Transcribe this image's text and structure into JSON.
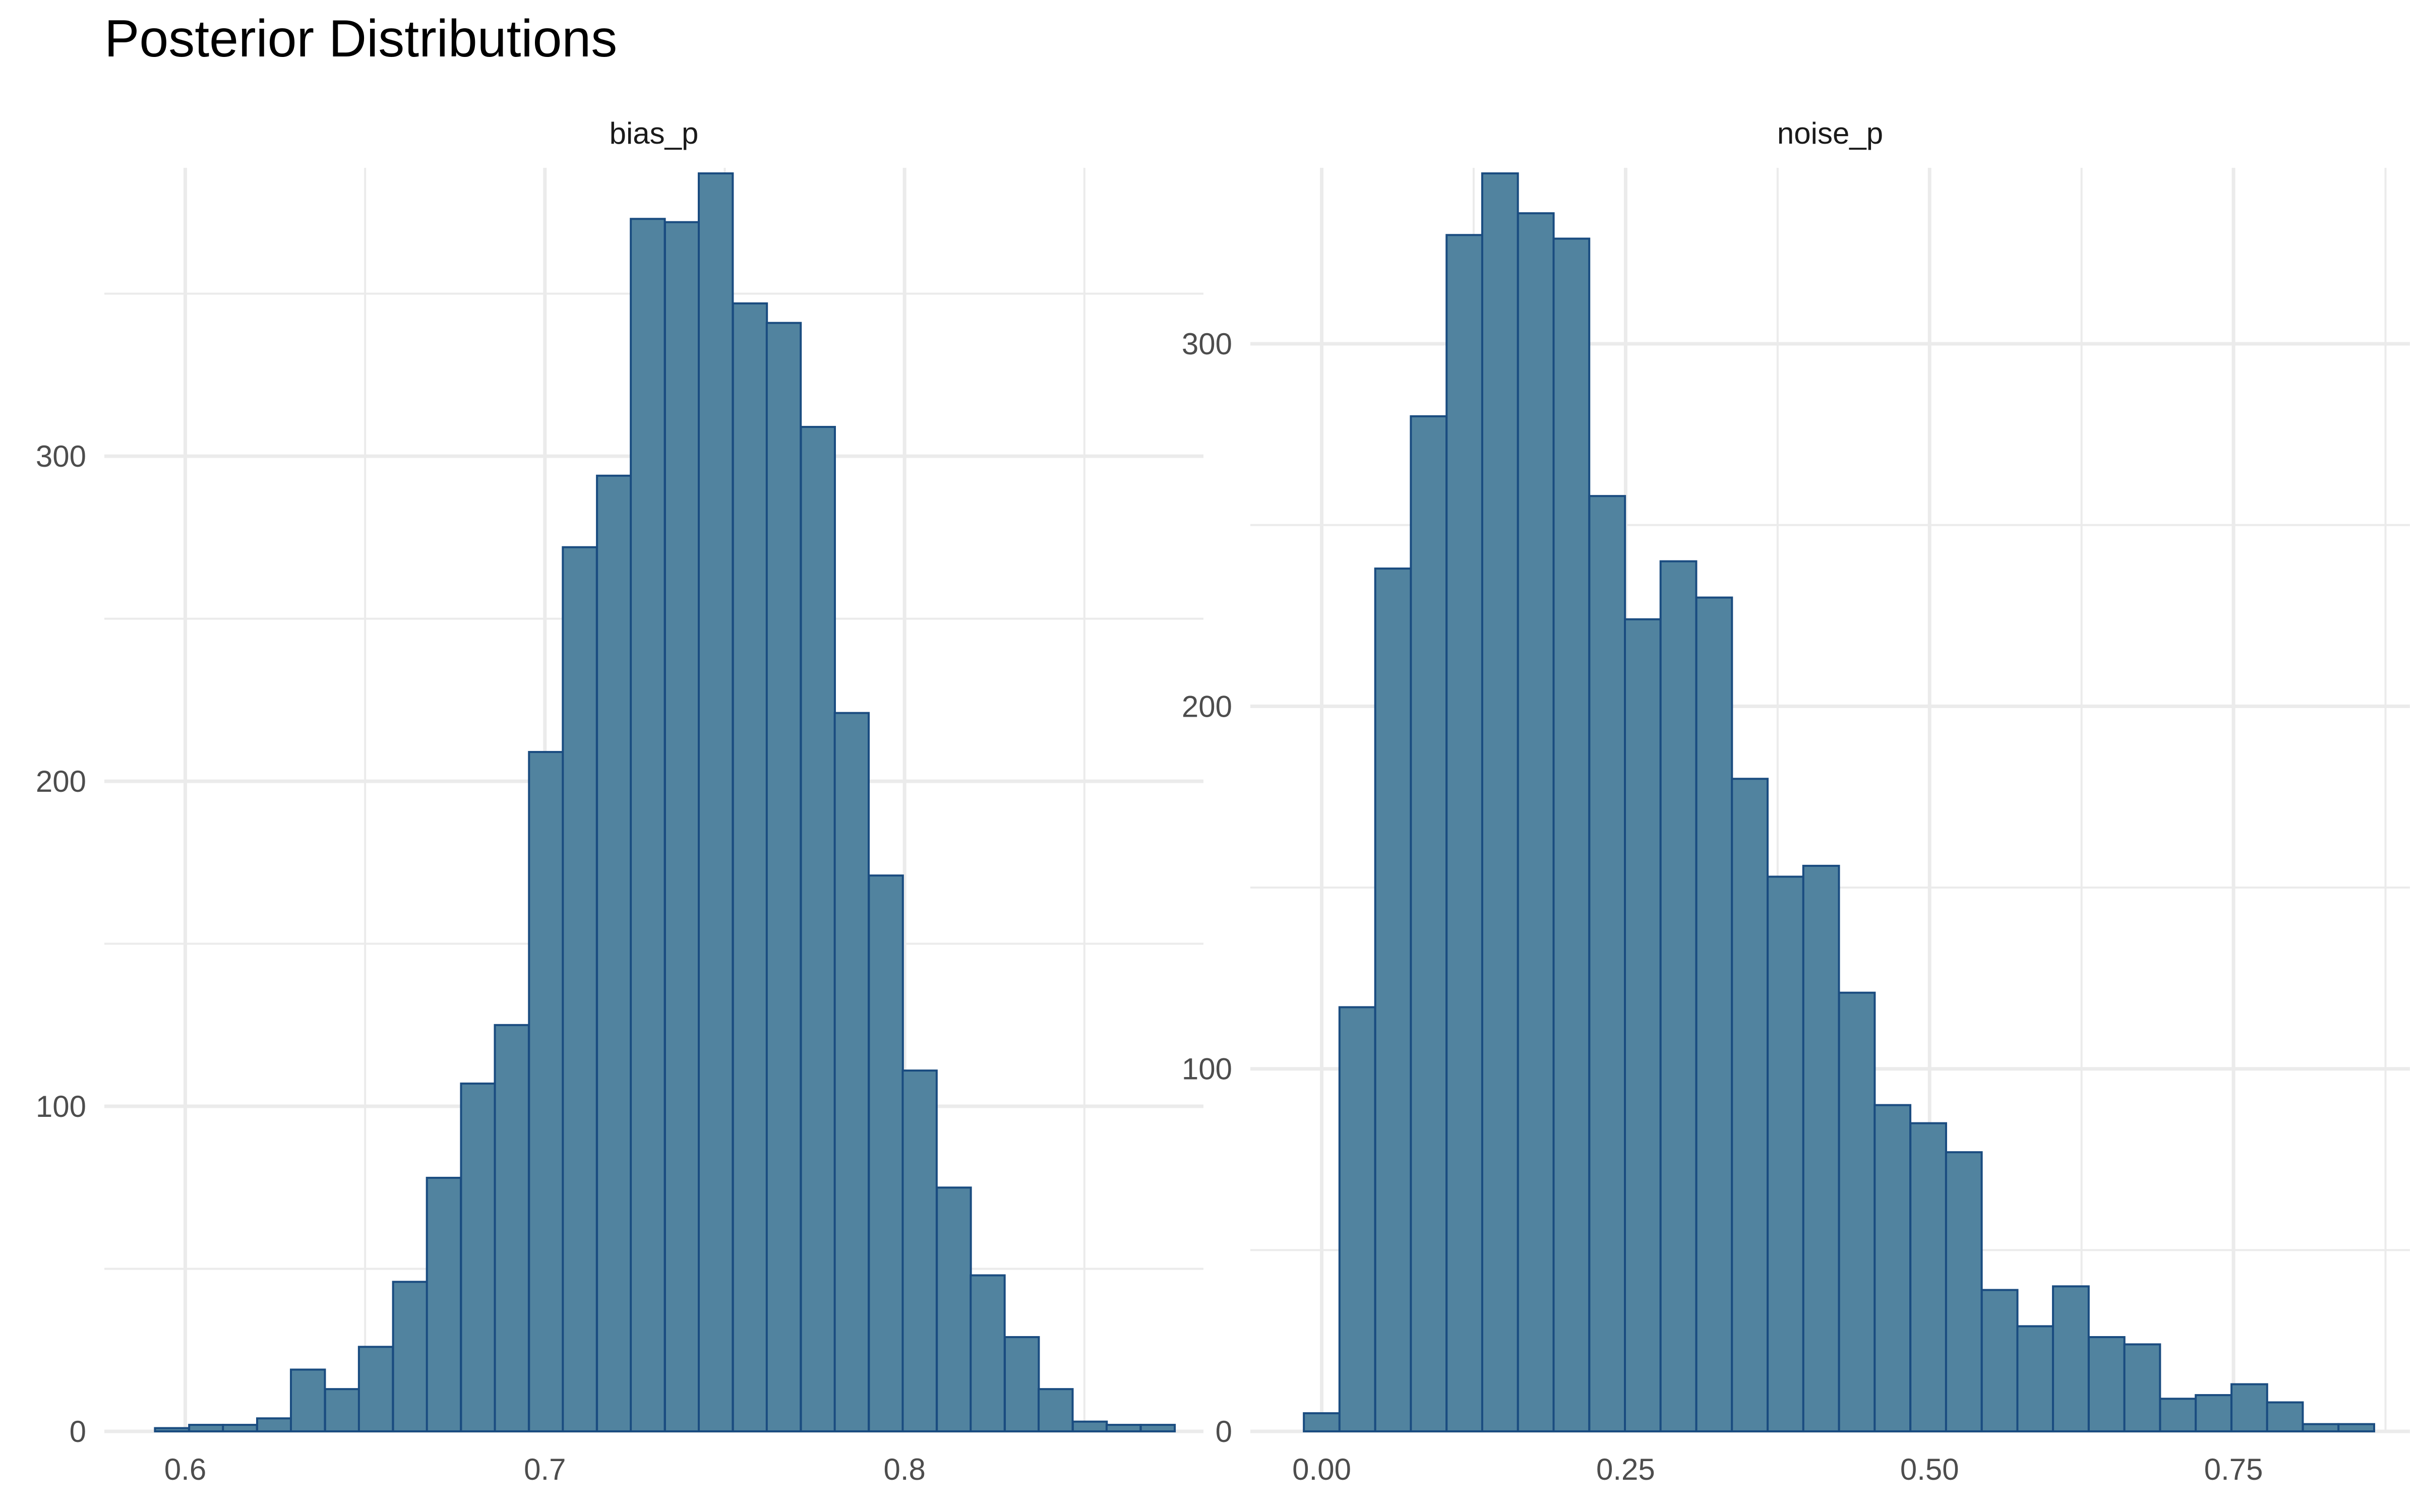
{
  "title": "Posterior Distributions",
  "colors": {
    "bar_fill": "#51839F",
    "bar_stroke": "#1A4C80",
    "grid": "#EBEBEB",
    "background": "#FFFFFF"
  },
  "chart_data": [
    {
      "type": "bar",
      "panel": "bias_p",
      "x_bin_width": 0.00945,
      "x_bin_centers": [
        0.5963,
        0.6058,
        0.6152,
        0.6247,
        0.6341,
        0.6436,
        0.653,
        0.6625,
        0.6719,
        0.6814,
        0.6908,
        0.7003,
        0.7097,
        0.7192,
        0.7286,
        0.7381,
        0.7475,
        0.757,
        0.7664,
        0.7759,
        0.7853,
        0.7948,
        0.8042,
        0.8137,
        0.8231,
        0.8326,
        0.842,
        0.8515,
        0.8609,
        0.8704
      ],
      "values": [
        1,
        2,
        2,
        4,
        19,
        13,
        26,
        46,
        78,
        107,
        125,
        209,
        272,
        294,
        373,
        372,
        387,
        347,
        341,
        309,
        221,
        171,
        111,
        75,
        48,
        29,
        13,
        3,
        2,
        2
      ],
      "xlim": [
        0.5775,
        0.8831
      ],
      "ylim": [
        0,
        387
      ],
      "x_ticks": [
        0.6,
        0.7,
        0.8
      ],
      "x_tick_labels": [
        "0.6",
        "0.7",
        "0.8"
      ],
      "y_ticks": [
        0,
        100,
        200,
        300
      ],
      "y_tick_labels": [
        "0",
        "100",
        "200",
        "300"
      ],
      "grid": true
    },
    {
      "type": "bar",
      "panel": "noise_p",
      "x_bin_width": 0.02934,
      "x_bin_centers": [
        0.0,
        0.0293,
        0.0587,
        0.088,
        0.1174,
        0.1467,
        0.1761,
        0.2054,
        0.2348,
        0.2641,
        0.2934,
        0.3228,
        0.3521,
        0.3815,
        0.4108,
        0.4402,
        0.4695,
        0.4989,
        0.5282,
        0.5576,
        0.5869,
        0.6162,
        0.6456,
        0.6749,
        0.7043,
        0.7336,
        0.763,
        0.7923,
        0.8217,
        0.851
      ],
      "values": [
        5,
        117,
        238,
        280,
        330,
        347,
        336,
        329,
        258,
        224,
        240,
        230,
        180,
        153,
        156,
        121,
        90,
        85,
        77,
        39,
        29,
        40,
        26,
        24,
        9,
        10,
        13,
        8,
        2,
        2
      ],
      "xlim": [
        -0.0587,
        0.8951
      ],
      "ylim": [
        0,
        347
      ],
      "x_ticks": [
        0.0,
        0.25,
        0.5,
        0.75
      ],
      "x_tick_labels": [
        "0.00",
        "0.25",
        "0.50",
        "0.75"
      ],
      "y_ticks": [
        0,
        100,
        200,
        300
      ],
      "y_tick_labels": [
        "0",
        "100",
        "200",
        "300"
      ],
      "grid": true
    }
  ]
}
